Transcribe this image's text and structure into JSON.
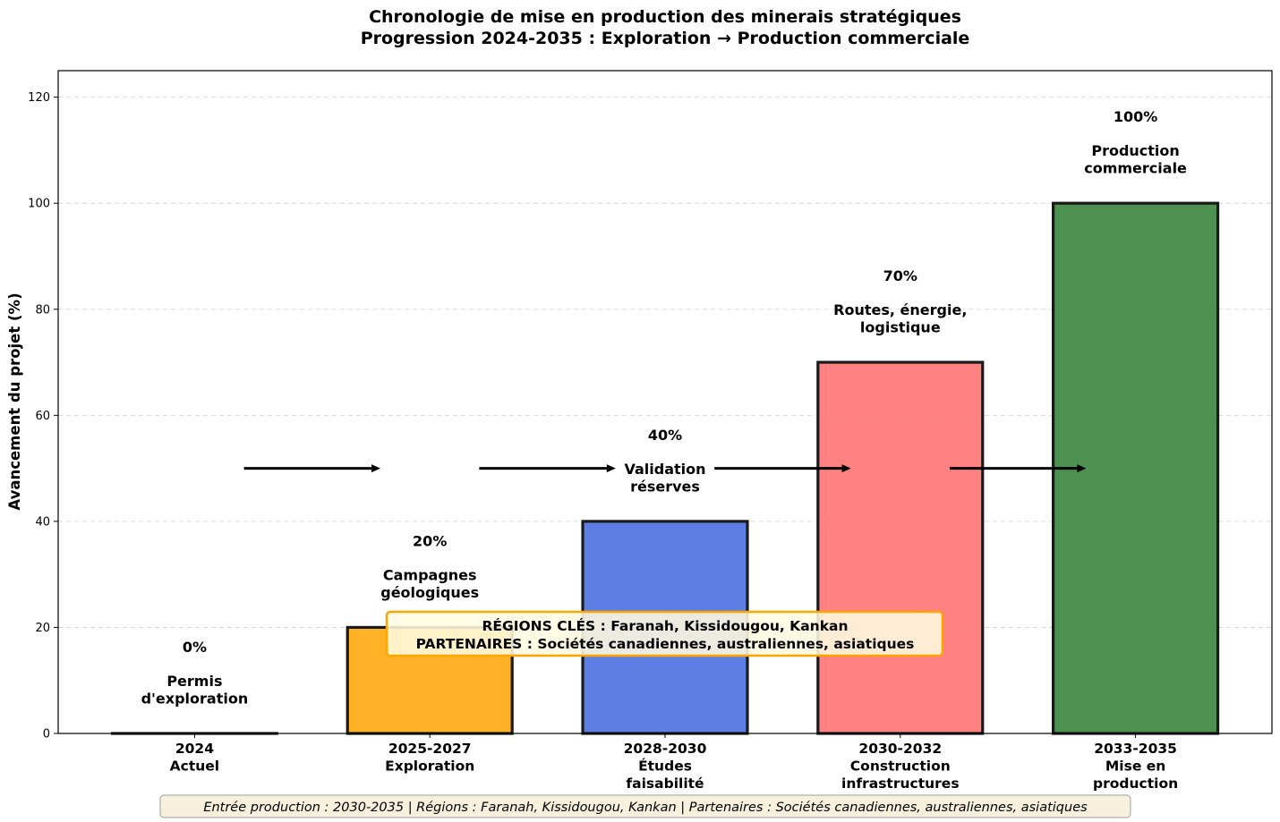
{
  "chart_data": {
    "type": "bar",
    "title": "Chronologie de mise en production des minerais stratégiques",
    "subtitle": "Progression 2024-2035 : Exploration → Production commerciale",
    "xlabel": "",
    "ylabel": "Avancement du projet (%)",
    "ylim": [
      0,
      125
    ],
    "yticks": [
      0,
      20,
      40,
      60,
      80,
      100,
      120
    ],
    "grid": "y, dashed",
    "categories": [
      [
        "2024",
        "Actuel"
      ],
      [
        "2025-2027",
        "Exploration"
      ],
      [
        "2028-2030",
        "Études",
        "faisabilité"
      ],
      [
        "2030-2032",
        "Construction",
        "infrastructures"
      ],
      [
        "2033-2035",
        "Mise en",
        "production"
      ]
    ],
    "values": [
      0,
      20,
      40,
      70,
      100
    ],
    "value_labels": [
      "0%",
      "20%",
      "40%",
      "70%",
      "100%"
    ],
    "descriptions": [
      [
        "Permis",
        "d'exploration"
      ],
      [
        "Campagnes",
        "géologiques"
      ],
      [
        "Validation",
        "réserves"
      ],
      [
        "Routes, énergie,",
        "logistique"
      ],
      [
        "Production",
        "commerciale"
      ]
    ],
    "colors": [
      "#7f7f7f",
      "#ffa500",
      "#4169e1",
      "#ff6b6b",
      "#2e7d32"
    ],
    "arrows": {
      "y": 50,
      "pairs": [
        [
          0,
          1
        ],
        [
          1,
          2
        ],
        [
          2,
          3
        ],
        [
          3,
          4
        ]
      ],
      "color": "#000000"
    },
    "annotation_box": {
      "lines": [
        "RÉGIONS CLÉS : Faranah, Kissidougou, Kankan",
        "PARTENAIRES : Sociétés canadiennes, australiennes, asiatiques"
      ],
      "y": 19,
      "fill": "#fffbe0",
      "border": "#ffa500"
    },
    "footer": "Entrée production : 2030-2035 | Régions : Faranah, Kissidougou, Kankan | Partenaires : Sociétés canadiennes, australiennes, asiatiques"
  }
}
